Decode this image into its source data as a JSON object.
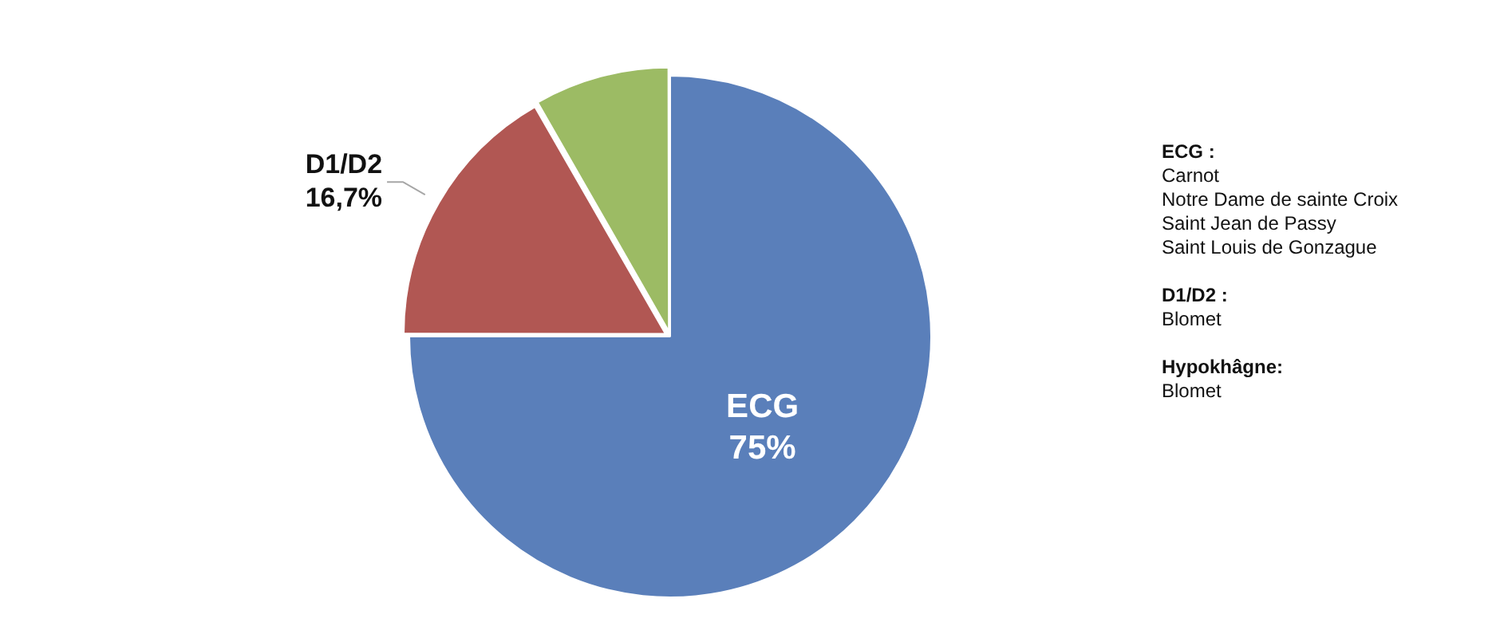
{
  "chart_data": {
    "type": "pie",
    "categories": [
      "ECG",
      "D1/D2",
      null
    ],
    "values": [
      75,
      16.7,
      8.3
    ],
    "colors": [
      "#5a7fba",
      "#b15753",
      "#9cbb64"
    ],
    "value_labels": [
      "75%",
      "16,7%",
      null
    ],
    "annotations": [
      "ECG :\nCarnot\nNotre Dame de sainte Croix\nSaint Jean de Passy\nSaint Louis de Gonzague",
      "D1/D2 :\nBlomet",
      "Hypokhâgne:\nBlomet"
    ]
  }
}
